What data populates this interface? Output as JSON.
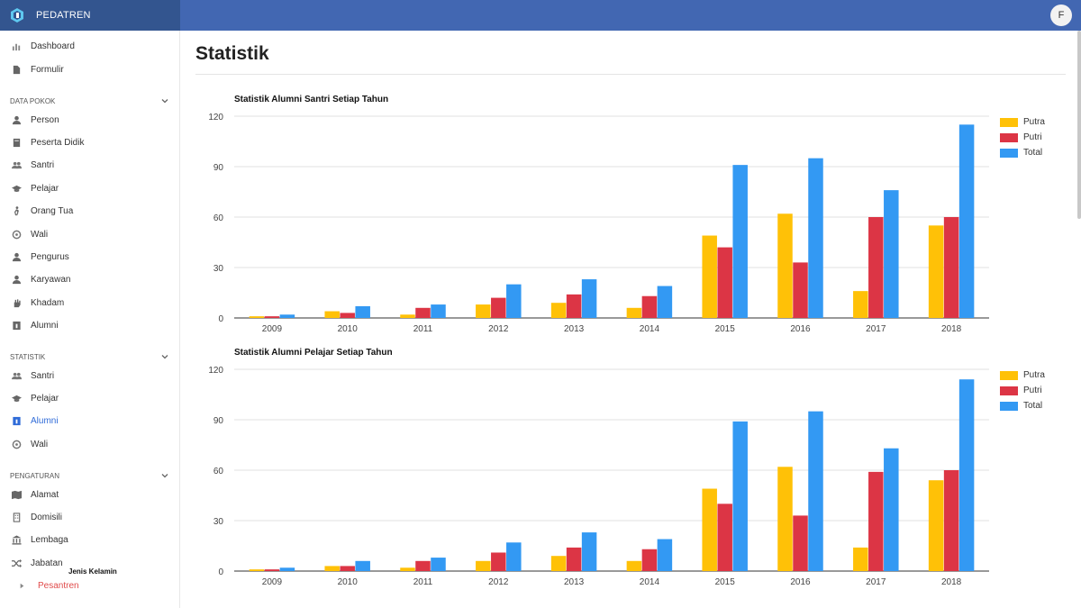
{
  "app": {
    "name": "PEDATREN",
    "avatar_initial": "F"
  },
  "sidebar": {
    "top": [
      {
        "label": "Dashboard",
        "icon": "bar-chart-icon"
      },
      {
        "label": "Formulir",
        "icon": "file-icon"
      }
    ],
    "sections": [
      {
        "title": "DATA POKOK",
        "items": [
          {
            "label": "Person",
            "icon": "user-icon"
          },
          {
            "label": "Peserta Didik",
            "icon": "book-icon"
          },
          {
            "label": "Santri",
            "icon": "users-icon"
          },
          {
            "label": "Pelajar",
            "icon": "graduation-cap-icon"
          },
          {
            "label": "Orang Tua",
            "icon": "walking-person-icon"
          },
          {
            "label": "Wali",
            "icon": "support-icon"
          },
          {
            "label": "Pengurus",
            "icon": "user-tie-icon"
          },
          {
            "label": "Karyawan",
            "icon": "user-icon"
          },
          {
            "label": "Khadam",
            "icon": "hand-icon"
          },
          {
            "label": "Alumni",
            "icon": "id-card-icon"
          }
        ]
      },
      {
        "title": "STATISTIK",
        "items": [
          {
            "label": "Santri",
            "icon": "users-icon"
          },
          {
            "label": "Pelajar",
            "icon": "graduation-cap-icon"
          },
          {
            "label": "Alumni",
            "icon": "id-card-icon",
            "active": true
          },
          {
            "label": "Wali",
            "icon": "support-icon"
          }
        ]
      },
      {
        "title": "PENGATURAN",
        "items": [
          {
            "label": "Alamat",
            "icon": "map-icon"
          },
          {
            "label": "Domisili",
            "icon": "building-icon"
          },
          {
            "label": "Lembaga",
            "icon": "institution-icon"
          },
          {
            "label": "Jabatan",
            "icon": "shuffle-icon"
          },
          {
            "label": "Pesantren",
            "icon": "caret-right-icon",
            "sub": true
          }
        ]
      }
    ]
  },
  "page": {
    "title": "Statistik",
    "footer_label": "Jenis Kelamin"
  },
  "colors": {
    "putra": "#ffc107",
    "putri": "#dc3545",
    "total": "#3399f3"
  },
  "chart_data": [
    {
      "type": "bar",
      "title": "Statistik Alumni Santri Setiap Tahun",
      "categories": [
        "2009",
        "2010",
        "2011",
        "2012",
        "2013",
        "2014",
        "2015",
        "2016",
        "2017",
        "2018"
      ],
      "series": [
        {
          "name": "Putra",
          "values": [
            1,
            4,
            2,
            8,
            9,
            6,
            49,
            62,
            16,
            55
          ]
        },
        {
          "name": "Putri",
          "values": [
            1,
            3,
            6,
            12,
            14,
            13,
            42,
            33,
            60,
            60
          ]
        },
        {
          "name": "Total",
          "values": [
            2,
            7,
            8,
            20,
            23,
            19,
            91,
            95,
            76,
            115
          ]
        }
      ],
      "ylim": [
        0,
        120
      ],
      "yticks": [
        "0",
        "30",
        "60",
        "90",
        "120"
      ],
      "grid": true,
      "legend": "top-right"
    },
    {
      "type": "bar",
      "title": "Statistik Alumni Pelajar Setiap Tahun",
      "categories": [
        "2009",
        "2010",
        "2011",
        "2012",
        "2013",
        "2014",
        "2015",
        "2016",
        "2017",
        "2018"
      ],
      "series": [
        {
          "name": "Putra",
          "values": [
            1,
            3,
            2,
            6,
            9,
            6,
            49,
            62,
            14,
            54
          ]
        },
        {
          "name": "Putri",
          "values": [
            1,
            3,
            6,
            11,
            14,
            13,
            40,
            33,
            59,
            60
          ]
        },
        {
          "name": "Total",
          "values": [
            2,
            6,
            8,
            17,
            23,
            19,
            89,
            95,
            73,
            114
          ]
        }
      ],
      "ylim": [
        0,
        120
      ],
      "yticks": [
        "0",
        "30",
        "60",
        "90",
        "120"
      ],
      "grid": true,
      "legend": "top-right"
    }
  ]
}
